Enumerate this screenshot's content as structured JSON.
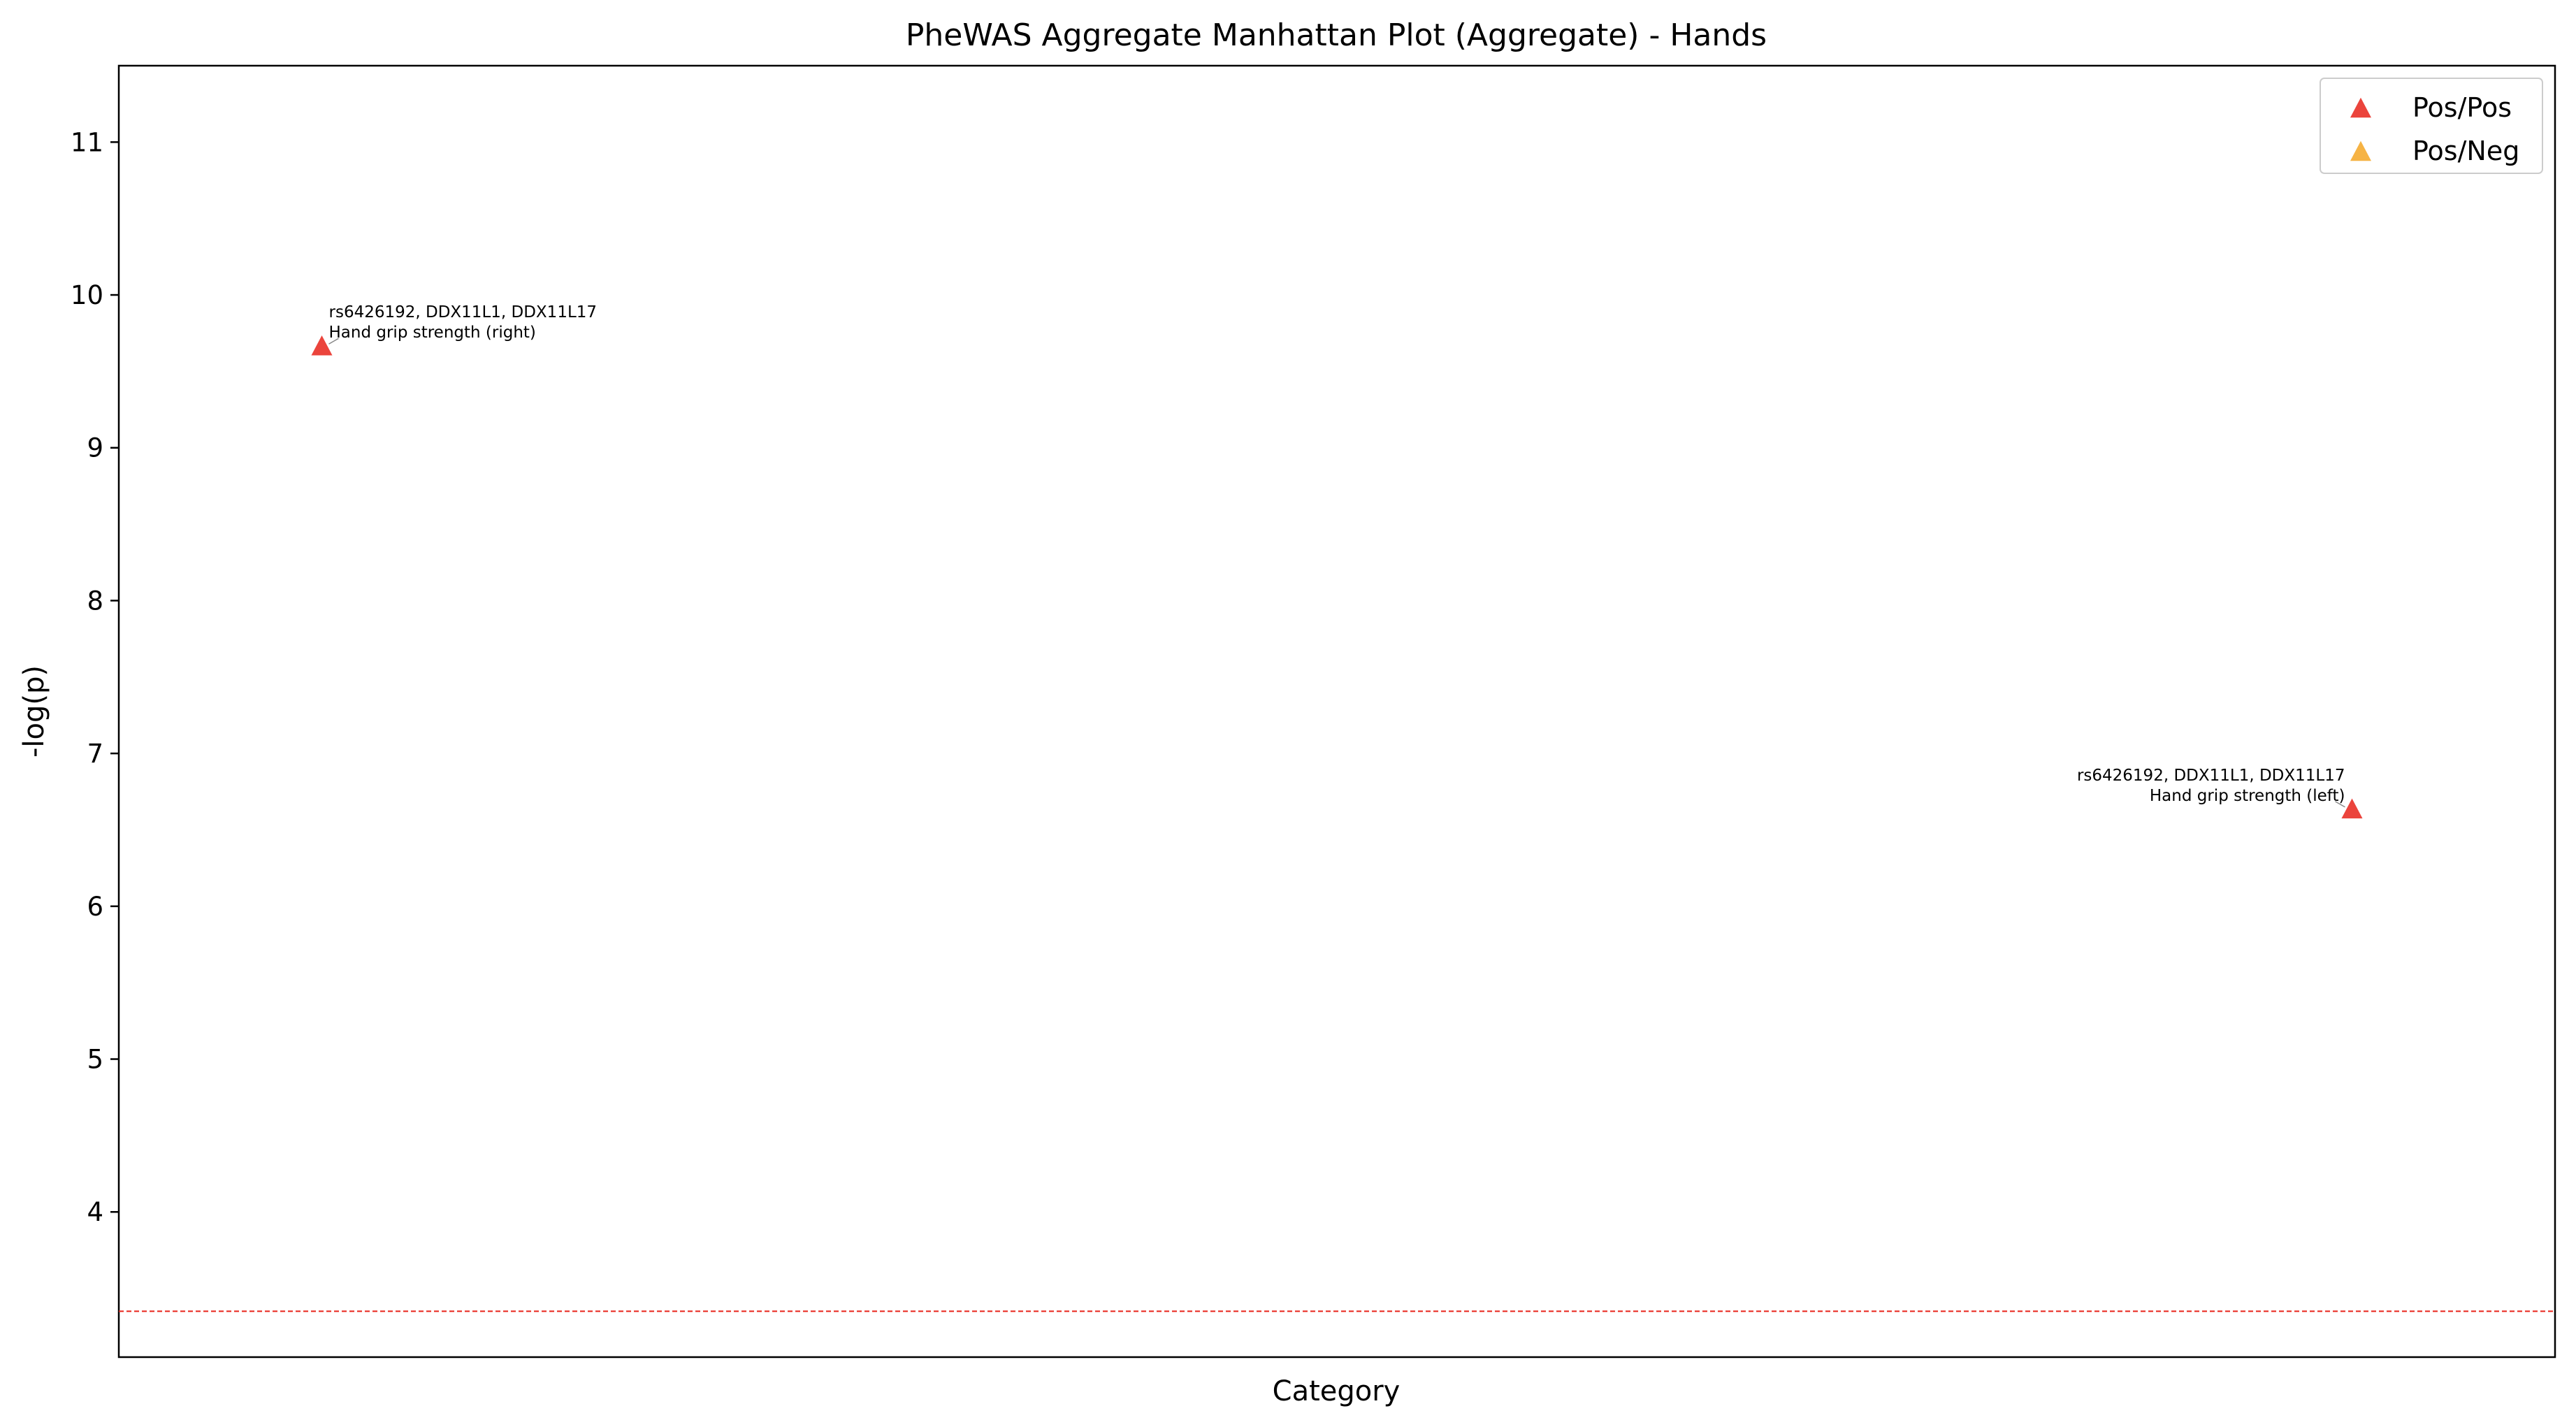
{
  "chart_data": {
    "type": "scatter",
    "title": "PheWAS Aggregate Manhattan Plot (Aggregate) - Hands",
    "xlabel": "Category",
    "ylabel": "-log(p)",
    "ylim": [
      3.05,
      11.5
    ],
    "xlim": [
      0,
      12
    ],
    "yticks": [
      4,
      5,
      6,
      7,
      8,
      9,
      10,
      11
    ],
    "grid": false,
    "legend_position": "top-right",
    "significance_threshold": 3.35,
    "threshold_color": "#e8231a",
    "series": [
      {
        "name": "Pos/Pos",
        "color": "#e8231a",
        "marker": "triangle"
      },
      {
        "name": "Pos/Neg",
        "color": "#f5a623",
        "marker": "triangle"
      }
    ],
    "points": [
      {
        "series": "Pos/Pos",
        "x": 1,
        "y": 9.67,
        "label_line1": "rs6426192, DDX11L1, DDX11L17",
        "label_line2": "Hand grip strength (right)",
        "label_side": "right"
      },
      {
        "series": "Pos/Pos",
        "x": 11,
        "y": 6.64,
        "label_line1": "rs6426192, DDX11L1, DDX11L17",
        "label_line2": "Hand grip strength (left)",
        "label_side": "left"
      }
    ]
  }
}
